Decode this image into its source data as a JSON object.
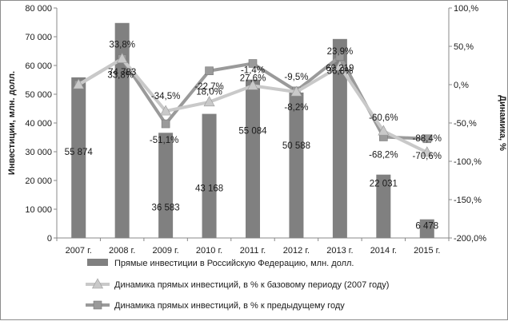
{
  "chart_data": {
    "type": "bar",
    "categories": [
      "2007 г.",
      "2008 г.",
      "2009 г.",
      "2010 г.",
      "2011 г.",
      "2012 г.",
      "2013 г.",
      "2014 г.",
      "2015 г."
    ],
    "ylabel": "Инвестиции, млн. долл.",
    "y2label": "Динамика, %",
    "ylim": [
      0,
      80000
    ],
    "y2lim": [
      -200,
      100
    ],
    "y_ticks": [
      "0",
      "10 000",
      "20 000",
      "30 000",
      "40 000",
      "50 000",
      "60 000",
      "70 000",
      "80 000"
    ],
    "y2_ticks": [
      "-200,0%",
      "-150,%",
      "-100,%",
      "-50,%",
      "0,%",
      "50,%",
      "100,%"
    ],
    "grid": false,
    "legend_position": "bottom",
    "series": [
      {
        "name": "Прямые инвестиции в Российскую Федерацию, млн. долл.",
        "kind": "bar",
        "axis": "left",
        "values": [
          55874,
          74783,
          36583,
          43168,
          55084,
          50588,
          69219,
          22031,
          6478
        ],
        "labels": [
          "55 874",
          "74 783",
          "36 583",
          "43 168",
          "55 084",
          "50 588",
          "69 219",
          "22 031",
          "6 478"
        ],
        "color": "#808080"
      },
      {
        "name": "Динамика прямых инвестиций, в % к базовому периоду (2007 году)",
        "kind": "line",
        "axis": "right",
        "values": [
          0,
          33.8,
          -34.5,
          -22.7,
          -1.4,
          -9.5,
          23.9,
          -60.6,
          -88.4
        ],
        "labels": [
          "",
          "33,8%",
          "-34,5%",
          "-22,7%",
          "-1,4%",
          "-9,5%",
          "23,9%",
          "-60,6%",
          "-88,4%"
        ],
        "color": "#c9c9c9",
        "marker": "triangle"
      },
      {
        "name": "Динамика прямых инвестиций, в % к предыдущему году",
        "kind": "line",
        "axis": "right",
        "values": [
          0,
          33.8,
          -51.1,
          18.0,
          27.6,
          -8.2,
          36.8,
          -68.2,
          -70.6
        ],
        "labels": [
          "",
          "33,8%",
          "-51,1%",
          "18,0%",
          "27,6%",
          "-8,2%",
          "36,8%",
          "-68,2%",
          "-70,6%"
        ],
        "color": "#9a9a9a",
        "marker": "square"
      }
    ]
  }
}
